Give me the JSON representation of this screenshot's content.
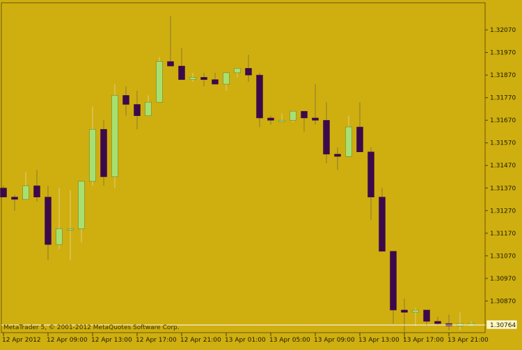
{
  "app": {
    "copyright": "MetaTrader 5, © 2001-2012 MetaQuotes Software Corp.",
    "current_price_label": "1.30764"
  },
  "colors": {
    "background": "#cfae10",
    "frame": "#6b5a00",
    "bull_candle": "#a8e070",
    "bear_candle": "#3c0a4a",
    "wick_bull": "#e0d080",
    "wick_bear": "#8a7a30",
    "tick": "#4a3f00",
    "price_line": "#ffffff"
  },
  "chart_data": {
    "type": "candlestick",
    "title": "",
    "timeframe_note": "",
    "y_ticks": [
      1.3207,
      1.3197,
      1.3187,
      1.3177,
      1.3167,
      1.3157,
      1.3147,
      1.3137,
      1.3127,
      1.3117,
      1.3107,
      1.3097,
      1.3087
    ],
    "y_tick_labels": [
      "1.32070",
      "1.31970",
      "1.31870",
      "1.31770",
      "1.31670",
      "1.31570",
      "1.31470",
      "1.31370",
      "1.31270",
      "1.31170",
      "1.31070",
      "1.30970",
      "1.30870"
    ],
    "ylim": [
      1.3073,
      1.3219
    ],
    "x_tick_labels": [
      "12 Apr 2012",
      "12 Apr 09:00",
      "12 Apr 13:00",
      "12 Apr 17:00",
      "12 Apr 21:00",
      "13 Apr 01:00",
      "13 Apr 05:00",
      "13 Apr 09:00",
      "13 Apr 13:00",
      "13 Apr 17:00",
      "13 Apr 21:00"
    ],
    "x_tick_candle_index": [
      0,
      4,
      8,
      12,
      16,
      20,
      24,
      28,
      32,
      36,
      40
    ],
    "current_price": 1.30764,
    "candles": [
      {
        "o": 1.3137,
        "h": 1.3138,
        "l": 1.3133,
        "c": 1.3133
      },
      {
        "o": 1.3133,
        "h": 1.3134,
        "l": 1.3127,
        "c": 1.3132
      },
      {
        "o": 1.3132,
        "h": 1.3144,
        "l": 1.3132,
        "c": 1.3138
      },
      {
        "o": 1.3138,
        "h": 1.3145,
        "l": 1.3131,
        "c": 1.3133
      },
      {
        "o": 1.3133,
        "h": 1.3138,
        "l": 1.3105,
        "c": 1.3112
      },
      {
        "o": 1.3112,
        "h": 1.3137,
        "l": 1.311,
        "c": 1.3119
      },
      {
        "o": 1.3119,
        "h": 1.3136,
        "l": 1.3105,
        "c": 1.3119
      },
      {
        "o": 1.3119,
        "h": 1.314,
        "l": 1.3113,
        "c": 1.314
      },
      {
        "o": 1.314,
        "h": 1.3173,
        "l": 1.3138,
        "c": 1.3163
      },
      {
        "o": 1.3163,
        "h": 1.3167,
        "l": 1.3138,
        "c": 1.3142
      },
      {
        "o": 1.3142,
        "h": 1.3183,
        "l": 1.3137,
        "c": 1.3178
      },
      {
        "o": 1.3178,
        "h": 1.3182,
        "l": 1.3169,
        "c": 1.3174
      },
      {
        "o": 1.3174,
        "h": 1.318,
        "l": 1.3163,
        "c": 1.3169
      },
      {
        "o": 1.3169,
        "h": 1.3178,
        "l": 1.3169,
        "c": 1.3175
      },
      {
        "o": 1.3175,
        "h": 1.3195,
        "l": 1.3175,
        "c": 1.3193
      },
      {
        "o": 1.3193,
        "h": 1.3213,
        "l": 1.3192,
        "c": 1.3191
      },
      {
        "o": 1.3191,
        "h": 1.3199,
        "l": 1.3185,
        "c": 1.3185
      },
      {
        "o": 1.3185,
        "h": 1.3188,
        "l": 1.3184,
        "c": 1.3186
      },
      {
        "o": 1.3186,
        "h": 1.3188,
        "l": 1.3182,
        "c": 1.3185
      },
      {
        "o": 1.3185,
        "h": 1.3188,
        "l": 1.3183,
        "c": 1.3183
      },
      {
        "o": 1.3183,
        "h": 1.3188,
        "l": 1.318,
        "c": 1.3188
      },
      {
        "o": 1.3188,
        "h": 1.319,
        "l": 1.3186,
        "c": 1.319
      },
      {
        "o": 1.319,
        "h": 1.3196,
        "l": 1.3184,
        "c": 1.3187
      },
      {
        "o": 1.3187,
        "h": 1.3188,
        "l": 1.3164,
        "c": 1.3168
      },
      {
        "o": 1.3168,
        "h": 1.3169,
        "l": 1.3165,
        "c": 1.3167
      },
      {
        "o": 1.3167,
        "h": 1.317,
        "l": 1.3166,
        "c": 1.3167
      },
      {
        "o": 1.3167,
        "h": 1.3171,
        "l": 1.3166,
        "c": 1.3171
      },
      {
        "o": 1.3171,
        "h": 1.3171,
        "l": 1.3162,
        "c": 1.3168
      },
      {
        "o": 1.3168,
        "h": 1.3183,
        "l": 1.3165,
        "c": 1.3167
      },
      {
        "o": 1.3167,
        "h": 1.3175,
        "l": 1.3148,
        "c": 1.3152
      },
      {
        "o": 1.3152,
        "h": 1.3155,
        "l": 1.3145,
        "c": 1.3151
      },
      {
        "o": 1.3151,
        "h": 1.3169,
        "l": 1.3151,
        "c": 1.3164
      },
      {
        "o": 1.3164,
        "h": 1.3175,
        "l": 1.3153,
        "c": 1.3153
      },
      {
        "o": 1.3153,
        "h": 1.3155,
        "l": 1.3123,
        "c": 1.3133
      },
      {
        "o": 1.3133,
        "h": 1.3137,
        "l": 1.3109,
        "c": 1.3109
      },
      {
        "o": 1.3109,
        "h": 1.3109,
        "l": 1.3077,
        "c": 1.3083
      },
      {
        "o": 1.3083,
        "h": 1.3088,
        "l": 1.307,
        "c": 1.3082
      },
      {
        "o": 1.3082,
        "h": 1.3084,
        "l": 1.3076,
        "c": 1.3083
      },
      {
        "o": 1.3083,
        "h": 1.3083,
        "l": 1.3076,
        "c": 1.3078
      },
      {
        "o": 1.3078,
        "h": 1.308,
        "l": 1.3076,
        "c": 1.3077
      },
      {
        "o": 1.3077,
        "h": 1.3081,
        "l": 1.3074,
        "c": 1.3076
      },
      {
        "o": 1.3076,
        "h": 1.3082,
        "l": 1.3074,
        "c": 1.3077
      },
      {
        "o": 1.3077,
        "h": 1.3078,
        "l": 1.3076,
        "c": 1.3077
      }
    ]
  }
}
